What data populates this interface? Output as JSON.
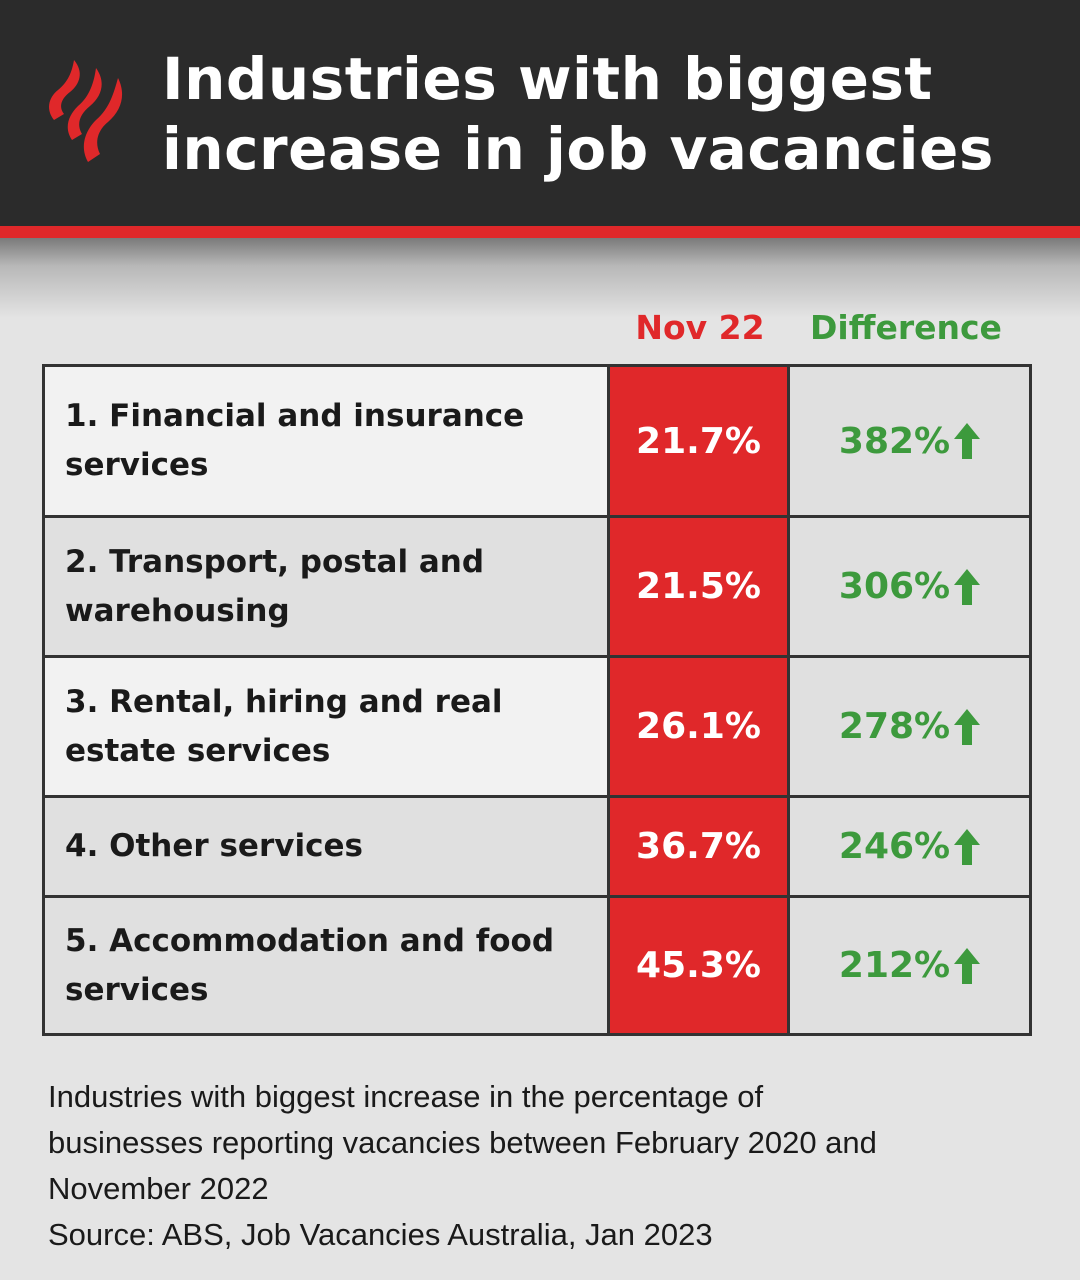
{
  "header": {
    "title_line1": "Industries with biggest",
    "title_line2": "increase in job vacancies",
    "brand_color": "#e0282a",
    "logo_icon": "sbs-logo-icon"
  },
  "chart_data": {
    "type": "table",
    "columns": [
      "Nov 22",
      "Difference"
    ],
    "rows": [
      {
        "rank": 1,
        "label": "1. Financial and insurance services",
        "line1": "1. Financial and insurance",
        "line2": "services",
        "nov22": "21.7%",
        "difference": "382%"
      },
      {
        "rank": 2,
        "label": "2. Transport, postal and warehousing",
        "line1": "2. Transport, postal and",
        "line2": "warehousing",
        "nov22": "21.5%",
        "difference": "306%"
      },
      {
        "rank": 3,
        "label": "3. Rental, hiring and real estate services",
        "line1": "3. Rental, hiring and real",
        "line2": "estate services",
        "nov22": "26.1%",
        "difference": "278%"
      },
      {
        "rank": 4,
        "label": "4. Other services",
        "line1": "4. Other services",
        "line2": "",
        "nov22": "36.7%",
        "difference": "246%"
      },
      {
        "rank": 5,
        "label": "5. Accommodation and food services",
        "line1": "5. Accommodation and food",
        "line2": "services",
        "nov22": "45.3%",
        "difference": "212%"
      }
    ],
    "colors": {
      "nov22": "#e0282a",
      "difference": "#3d9a3d"
    },
    "difference_icon": "arrow-up-icon"
  },
  "footnote": {
    "line1": "Industries with biggest increase in the percentage of",
    "line2": "businesses reporting vacancies between February 2020 and",
    "line3": "November 2022",
    "source": "Source: ABS, Job Vacancies Australia, Jan 2023"
  }
}
